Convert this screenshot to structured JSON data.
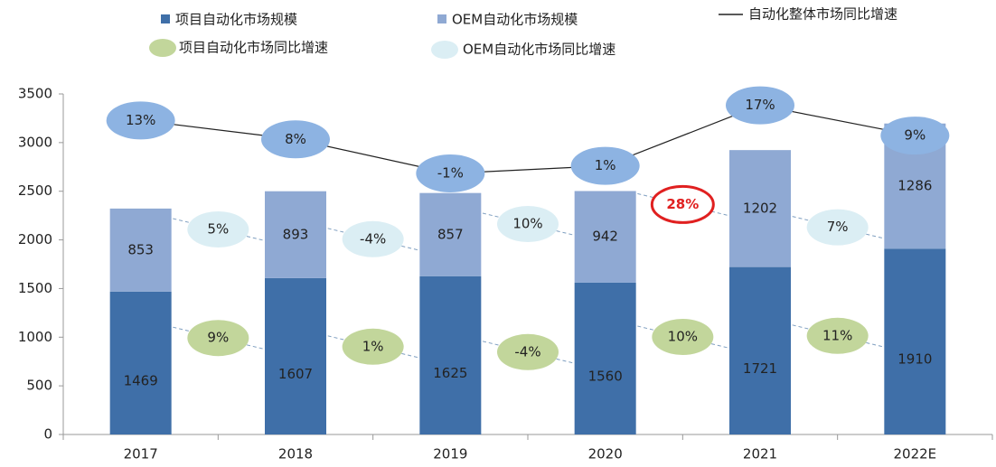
{
  "chart_data": {
    "type": "bar",
    "stacked": true,
    "categories": [
      "2017",
      "2018",
      "2019",
      "2020",
      "2021",
      "2022E"
    ],
    "series": [
      {
        "name": "项目自动化市场规模",
        "color": "#3f6fa8",
        "values": [
          1469,
          1607,
          1625,
          1560,
          1721,
          1910
        ]
      },
      {
        "name": "OEM自动化市场规模",
        "color": "#8fa9d3",
        "values": [
          853,
          893,
          857,
          942,
          1202,
          1286
        ]
      },
      {
        "name": "自动化整体市场同比增速",
        "type": "line",
        "axis": "y2",
        "color": "#222222",
        "marker_color": "#8db3e2",
        "values": [
          13,
          8,
          -1,
          1,
          17,
          9
        ],
        "value_labels": [
          "13%",
          "8%",
          "-1%",
          "1%",
          "17%",
          "9%"
        ]
      },
      {
        "name": "项目自动化市场同比增速",
        "type": "bubble",
        "color": "#c2d69b",
        "values": [
          null,
          9,
          1,
          -4,
          10,
          11
        ],
        "value_labels": [
          null,
          "9%",
          "1%",
          "-4%",
          "10%",
          "11%"
        ]
      },
      {
        "name": "OEM自动化市场同比增速",
        "type": "bubble",
        "color": "#dbeef4",
        "values": [
          null,
          5,
          -4,
          10,
          28,
          7
        ],
        "value_labels": [
          null,
          "5%",
          "-4%",
          "10%",
          "28%",
          "7%"
        ],
        "highlight_index": 4,
        "highlight_color": "#e02020"
      }
    ],
    "ylim": [
      0,
      3500
    ],
    "yticks": [
      0,
      500,
      1000,
      1500,
      2000,
      2500,
      3000,
      3500
    ],
    "y2lim": [
      -70,
      20
    ]
  }
}
